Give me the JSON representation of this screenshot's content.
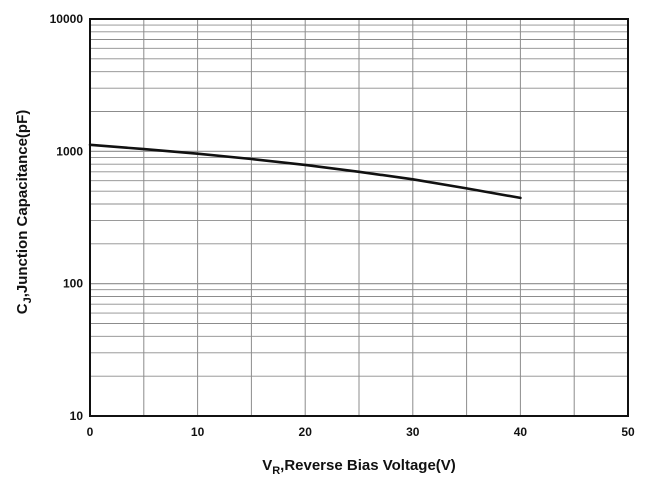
{
  "chart_data": {
    "type": "line",
    "title": "",
    "xlabel": {
      "main": "V",
      "sub": "R",
      "rest": ",Reverse Bias Voltage(V)"
    },
    "ylabel": {
      "main": "C",
      "sub": "J",
      "rest": ",Junction Capacitance(pF)"
    },
    "x_scale": "linear",
    "y_scale": "log",
    "xlim": [
      0,
      50
    ],
    "ylim": [
      10,
      10000
    ],
    "x_ticks": [
      0,
      10,
      20,
      30,
      40,
      50
    ],
    "x_tick_labels": [
      "0",
      "10",
      "20",
      "30",
      "40",
      "50"
    ],
    "y_ticks": [
      10,
      100,
      1000,
      10000
    ],
    "y_tick_labels": [
      "10",
      "100",
      "1000",
      "10000"
    ],
    "grid": true,
    "legend": "none",
    "series": [
      {
        "x": [
          0,
          5,
          10,
          15,
          20,
          25,
          30,
          35,
          40
        ],
        "y": [
          1120,
          1040,
          960,
          875,
          790,
          700,
          615,
          525,
          445
        ]
      }
    ]
  },
  "colors": {
    "line": "#111111",
    "grid": "#8c8c8c",
    "frame": "#111111",
    "background": "#ffffff"
  }
}
